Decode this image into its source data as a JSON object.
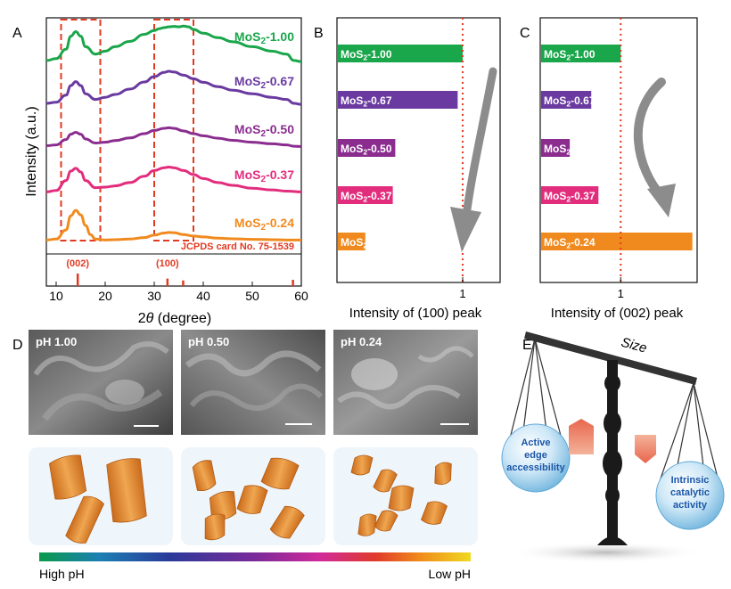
{
  "panels": {
    "A": "A",
    "B": "B",
    "C": "C",
    "D": "D",
    "E": "E"
  },
  "chart_data": [
    {
      "id": "A",
      "type": "line",
      "title": "",
      "xlabel_prefix": "2",
      "xlabel_theta": "θ",
      "xlabel_suffix": " (degree)",
      "ylabel": "Intensity (a.u.)",
      "xlim": [
        8,
        60
      ],
      "xticks": [
        10,
        20,
        30,
        40,
        50,
        60
      ],
      "series": [
        {
          "name": "MoS2-1.00",
          "color": "#1aa64a",
          "x": [
            8,
            10,
            12,
            13,
            14,
            15,
            16,
            18,
            20,
            22,
            25,
            28,
            30,
            31,
            32,
            33,
            34,
            35,
            36,
            37,
            38,
            40,
            43,
            46,
            50,
            54,
            57,
            58.5,
            60
          ],
          "y": [
            0.05,
            0.1,
            0.35,
            0.7,
            0.82,
            0.7,
            0.42,
            0.22,
            0.3,
            0.42,
            0.56,
            0.75,
            0.85,
            0.9,
            0.93,
            0.95,
            0.96,
            0.95,
            0.97,
            0.95,
            0.88,
            0.78,
            0.66,
            0.55,
            0.42,
            0.3,
            0.22,
            0.05,
            0.02
          ]
        },
        {
          "name": "MoS2-0.67",
          "color": "#6a3aa0",
          "x": [
            8,
            10,
            12,
            13,
            14,
            15,
            16,
            18,
            20,
            22,
            25,
            28,
            30,
            32,
            33,
            34,
            36,
            38,
            40,
            43,
            46,
            50,
            54,
            57,
            58.5,
            60
          ],
          "y": [
            0.05,
            0.08,
            0.28,
            0.55,
            0.66,
            0.55,
            0.32,
            0.16,
            0.22,
            0.3,
            0.45,
            0.65,
            0.8,
            0.92,
            0.95,
            0.93,
            0.84,
            0.74,
            0.64,
            0.52,
            0.42,
            0.32,
            0.22,
            0.16,
            0.05,
            0.02
          ]
        },
        {
          "name": "MoS2-0.50",
          "color": "#8a2d8f",
          "x": [
            8,
            10,
            12,
            13,
            14,
            15,
            16,
            18,
            20,
            22,
            25,
            28,
            30,
            32,
            33,
            34,
            36,
            38,
            40,
            43,
            46,
            50,
            54,
            57,
            58.5,
            60
          ],
          "y": [
            0.05,
            0.08,
            0.28,
            0.48,
            0.55,
            0.48,
            0.3,
            0.15,
            0.18,
            0.24,
            0.34,
            0.5,
            0.62,
            0.7,
            0.72,
            0.7,
            0.6,
            0.5,
            0.42,
            0.33,
            0.25,
            0.18,
            0.12,
            0.08,
            0.03,
            0.02
          ]
        },
        {
          "name": "MoS2-0.37",
          "color": "#e22d7d",
          "x": [
            8,
            10,
            12,
            13,
            14,
            15,
            16,
            18,
            20,
            22,
            25,
            28,
            30,
            32,
            33,
            34,
            36,
            38,
            40,
            43,
            46,
            50,
            54,
            57,
            60
          ],
          "y": [
            0.05,
            0.1,
            0.45,
            0.78,
            0.88,
            0.75,
            0.45,
            0.2,
            0.22,
            0.26,
            0.38,
            0.6,
            0.8,
            0.9,
            0.92,
            0.9,
            0.8,
            0.66,
            0.52,
            0.38,
            0.28,
            0.18,
            0.12,
            0.08,
            0.05
          ]
        },
        {
          "name": "MoS2-0.24",
          "color": "#f08a1e",
          "x": [
            8,
            10,
            12,
            13,
            14,
            15,
            16,
            17,
            18,
            20,
            22,
            25,
            28,
            30,
            32,
            33,
            34,
            36,
            38,
            40,
            43,
            46,
            50,
            54,
            57,
            60
          ],
          "y": [
            0.02,
            0.05,
            0.35,
            0.82,
            1.0,
            0.85,
            0.5,
            0.2,
            0.05,
            0.02,
            0.03,
            0.05,
            0.1,
            0.18,
            0.25,
            0.27,
            0.26,
            0.2,
            0.15,
            0.12,
            0.08,
            0.06,
            0.04,
            0.03,
            0.02,
            0.02
          ]
        }
      ],
      "highlight_boxes": [
        [
          11,
          19
        ],
        [
          30,
          38
        ]
      ],
      "reference": {
        "label": "JCPDS card No. 75-1539",
        "peaks": [
          {
            "x": 14.4,
            "label": "(002)",
            "height": 1.0
          },
          {
            "x": 32.7,
            "label": "(100)",
            "height": 0.6
          },
          {
            "x": 35.9,
            "label": "",
            "height": 0.45
          },
          {
            "x": 58.3,
            "label": "",
            "height": 0.5
          }
        ]
      }
    },
    {
      "id": "B",
      "type": "bar",
      "orientation": "horizontal",
      "categories": [
        "MoS2-1.00",
        "MoS2-0.67",
        "MoS2-0.50",
        "MoS2-0.37",
        "MoS2-0.24"
      ],
      "values": [
        1.0,
        0.96,
        0.46,
        0.44,
        0.22
      ],
      "colors": [
        "#1aa64a",
        "#6a3aa0",
        "#8a2d8f",
        "#e22d7d",
        "#f08a1e"
      ],
      "reference_line": 1,
      "xlim": [
        0,
        1.3
      ],
      "xticks": [
        1
      ],
      "xlabel": "Intensity of (100) peak"
    },
    {
      "id": "C",
      "type": "bar",
      "orientation": "horizontal",
      "categories": [
        "MoS2-1.00",
        "MoS2-0.67",
        "MoS2-0.50",
        "MoS2-0.37",
        "MoS2-0.24"
      ],
      "values": [
        1.0,
        0.63,
        0.36,
        0.72,
        1.9
      ],
      "colors": [
        "#1aa64a",
        "#6a3aa0",
        "#8a2d8f",
        "#e22d7d",
        "#f08a1e"
      ],
      "reference_line": 1,
      "xlim": [
        0,
        1.96
      ],
      "xticks": [
        1
      ],
      "xlabel": "Intensity of (002) peak"
    }
  ],
  "sem_labels": [
    "pH 1.00",
    "pH 0.50",
    "pH 0.24"
  ],
  "ph_bar": {
    "left": "High pH",
    "right": "Low pH",
    "colors": [
      "#0a9a4a",
      "#1c7fb3",
      "#2a3a9a",
      "#7a2a9a",
      "#d02a9a",
      "#e03a2a",
      "#f08a1a",
      "#f0d820"
    ]
  },
  "balance": {
    "beam_label": "Size",
    "left_ball": [
      "Active",
      "edge",
      "accessibility"
    ],
    "right_ball": [
      "Intrinsic",
      "catalytic",
      "activity"
    ]
  }
}
